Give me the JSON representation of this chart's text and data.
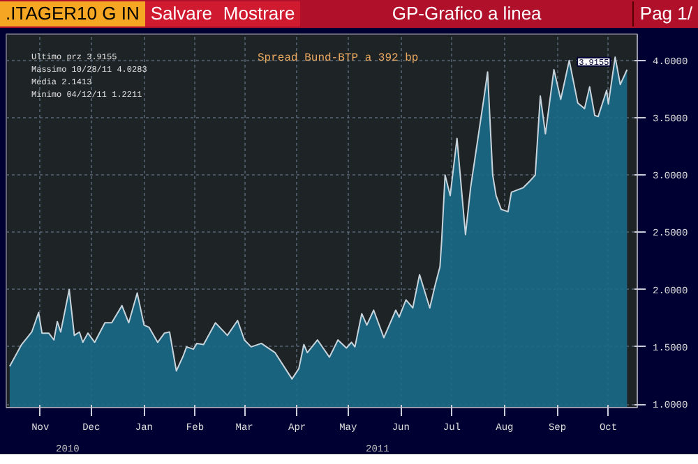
{
  "chart_data": {
    "type": "area",
    "title": "GP-Grafico a linea",
    "subtitle": "Spread Bund-BTP a 392 bp",
    "x": [
      "2010-10-28",
      "2010-11-04",
      "2010-11-10",
      "2010-11-14",
      "2010-11-16",
      "2010-11-20",
      "2010-11-23",
      "2010-11-25",
      "2010-11-27",
      "2010-12-02",
      "2010-12-05",
      "2010-12-08",
      "2010-12-10",
      "2010-12-13",
      "2010-12-17",
      "2010-12-23",
      "2010-12-27",
      "2011-01-02",
      "2011-01-06",
      "2011-01-11",
      "2011-01-15",
      "2011-01-18",
      "2011-01-23",
      "2011-01-27",
      "2011-01-30",
      "2011-02-03",
      "2011-02-07",
      "2011-02-09",
      "2011-02-13",
      "2011-02-15",
      "2011-02-19",
      "2011-02-26",
      "2011-03-05",
      "2011-03-11",
      "2011-03-15",
      "2011-03-19",
      "2011-03-25",
      "2011-04-02",
      "2011-04-12",
      "2011-04-16",
      "2011-04-19",
      "2011-04-21",
      "2011-04-27",
      "2011-05-04",
      "2011-05-09",
      "2011-05-14",
      "2011-05-17",
      "2011-05-19",
      "2011-05-23",
      "2011-05-26",
      "2011-05-30",
      "2011-06-05",
      "2011-06-12",
      "2011-06-14",
      "2011-06-18",
      "2011-06-22",
      "2011-06-26",
      "2011-07-02",
      "2011-07-05",
      "2011-07-08",
      "2011-07-09",
      "2011-07-11",
      "2011-07-14",
      "2011-07-18",
      "2011-07-23",
      "2011-07-26",
      "2011-08-03",
      "2011-08-05",
      "2011-08-08",
      "2011-08-10",
      "2011-08-13",
      "2011-08-17",
      "2011-08-19",
      "2011-08-26",
      "2011-08-30",
      "2011-09-02",
      "2011-09-05",
      "2011-09-08",
      "2011-09-13",
      "2011-09-17",
      "2011-09-22",
      "2011-09-27",
      "2011-10-01",
      "2011-10-04",
      "2011-10-07",
      "2011-10-09",
      "2011-10-14",
      "2011-10-15",
      "2011-10-19",
      "2011-10-22",
      "2011-10-26"
    ],
    "series": [
      {
        "color": "#1a6a88",
        "values": [
          1.33,
          1.52,
          1.63,
          1.8,
          1.62,
          1.62,
          1.56,
          1.72,
          1.63,
          2.0,
          1.6,
          1.63,
          1.54,
          1.62,
          1.54,
          1.71,
          1.71,
          1.86,
          1.71,
          1.97,
          1.69,
          1.67,
          1.54,
          1.62,
          1.63,
          1.29,
          1.42,
          1.5,
          1.48,
          1.53,
          1.52,
          1.71,
          1.6,
          1.73,
          1.56,
          1.5,
          1.53,
          1.45,
          1.22,
          1.31,
          1.52,
          1.45,
          1.56,
          1.41,
          1.56,
          1.49,
          1.54,
          1.5,
          1.79,
          1.69,
          1.82,
          1.58,
          1.82,
          1.76,
          1.91,
          1.84,
          2.13,
          1.84,
          2.03,
          2.2,
          2.43,
          3.0,
          2.82,
          3.32,
          2.48,
          2.89,
          3.69,
          3.9,
          3.0,
          2.82,
          2.7,
          2.68,
          2.85,
          2.89,
          2.95,
          3.0,
          3.69,
          3.36,
          3.92,
          3.66,
          4.0,
          3.63,
          3.58,
          3.77,
          3.52,
          3.51,
          3.74,
          3.62,
          4.03,
          3.79,
          3.92
        ]
      }
    ],
    "xlim": [
      "2010-10-26",
      "2011-11-01"
    ],
    "xticks": [
      {
        "value": "2010-11-15",
        "label": "Nov"
      },
      {
        "value": "2010-12-15",
        "label": "Dec"
      },
      {
        "value": "2011-01-15",
        "label": "Jan"
      },
      {
        "value": "2011-02-14",
        "label": "Feb"
      },
      {
        "value": "2011-03-15",
        "label": "Mar"
      },
      {
        "value": "2011-04-15",
        "label": "Apr"
      },
      {
        "value": "2011-05-15",
        "label": "May"
      },
      {
        "value": "2011-06-15",
        "label": "Jun"
      },
      {
        "value": "2011-07-15",
        "label": "Jul"
      },
      {
        "value": "2011-08-15",
        "label": "Aug"
      },
      {
        "value": "2011-09-15",
        "label": "Sep"
      },
      {
        "value": "2011-10-15",
        "label": "Oct"
      }
    ],
    "ylim": [
      0.97,
      4.23
    ],
    "yticks": [
      {
        "value": 1,
        "label": "1.0000"
      },
      {
        "value": 1.5,
        "label": "1.5000"
      },
      {
        "value": 2,
        "label": "2.0000"
      },
      {
        "value": 2.5,
        "label": "2.5000"
      },
      {
        "value": 3,
        "label": "3.0000"
      },
      {
        "value": 3.5,
        "label": "3.5000"
      },
      {
        "value": 4,
        "label": "4.0000"
      }
    ],
    "grid": true,
    "annotations": [
      ".ITAGER10 G IN",
      "Salvare",
      "Mostrare",
      "Pag 1/",
      "Ultimo prz    3.9155",
      "Massimo 10/28/11 4.0283",
      "Media         2.1413",
      "Minimo 04/12/11  1.2211",
      "2010",
      "2011",
      {
        "text": "3.9155",
        "x": "2011-10-26",
        "y": 3.9155
      }
    ]
  }
}
